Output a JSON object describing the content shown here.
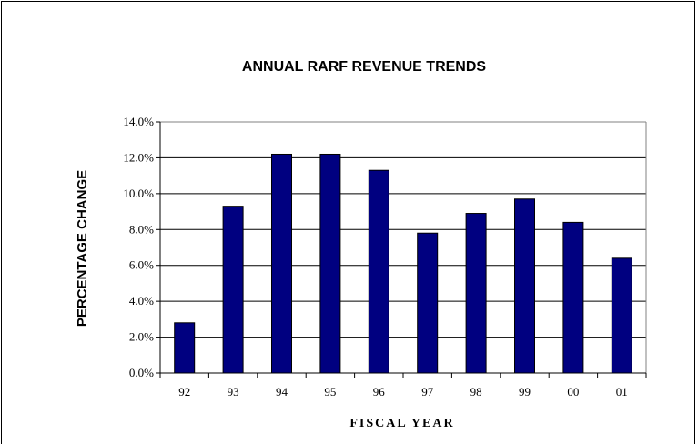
{
  "chart_data": {
    "type": "bar",
    "title": "ANNUAL RARF REVENUE TRENDS",
    "xlabel": "FISCAL YEAR",
    "ylabel": "PERCENTAGE CHANGE",
    "categories": [
      "92",
      "93",
      "94",
      "95",
      "96",
      "97",
      "98",
      "99",
      "00",
      "01"
    ],
    "values": [
      2.8,
      9.3,
      12.2,
      12.2,
      11.3,
      7.8,
      8.9,
      9.7,
      8.4,
      6.4
    ],
    "ylim": [
      0,
      14
    ],
    "yticks": [
      "0.0%",
      "2.0%",
      "4.0%",
      "6.0%",
      "8.0%",
      "10.0%",
      "12.0%",
      "14.0%"
    ],
    "grid": true,
    "legend": "none",
    "bar_color": "#000080",
    "grid_color": "#000000"
  }
}
